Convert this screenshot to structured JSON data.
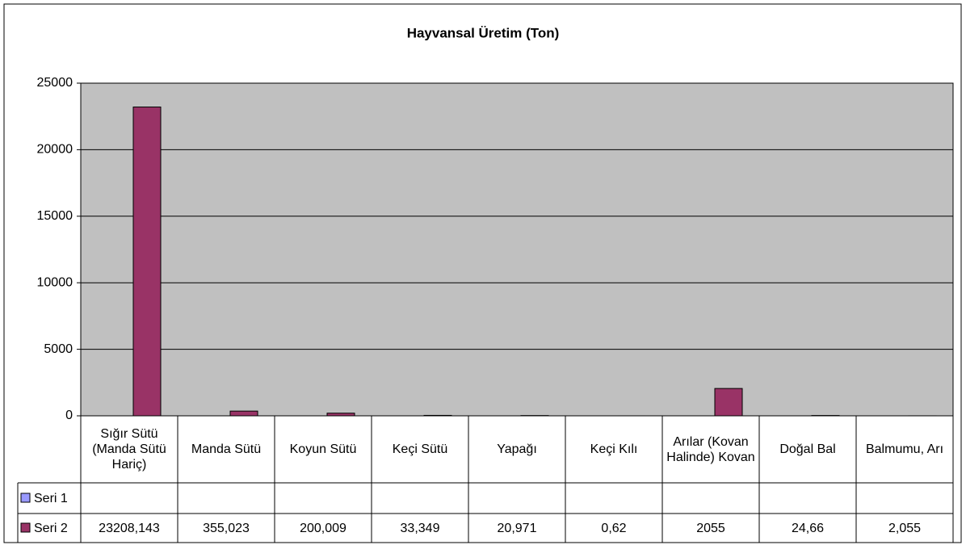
{
  "chart_data": {
    "type": "bar",
    "title": "Hayvansal Üretim (Ton)",
    "categories": [
      "Sığır Sütü (Manda Sütü Hariç)",
      "Manda Sütü",
      "Koyun Sütü",
      "Keçi Sütü",
      "Yapağı",
      "Keçi Kılı",
      "Arılar (Kovan Halinde) Kovan",
      "Doğal Bal",
      "Balmumu, Arı"
    ],
    "series": [
      {
        "name": "Seri 1",
        "color": "#9999ff",
        "values": [
          null,
          null,
          null,
          null,
          null,
          null,
          null,
          null,
          null
        ]
      },
      {
        "name": "Seri 2",
        "color": "#993366",
        "values": [
          23208.143,
          355.023,
          200.009,
          33.349,
          20.971,
          0.62,
          2055,
          24.66,
          2.055
        ],
        "value_labels": [
          "23208,143",
          "355,023",
          "200,009",
          "33,349",
          "20,971",
          "0,62",
          "2055",
          "24,66",
          "2,055"
        ]
      }
    ],
    "ylim": [
      0,
      25000
    ],
    "yticks": [
      0,
      5000,
      10000,
      15000,
      20000,
      25000
    ],
    "grid": true,
    "plot_background": "#c0c0c0"
  }
}
